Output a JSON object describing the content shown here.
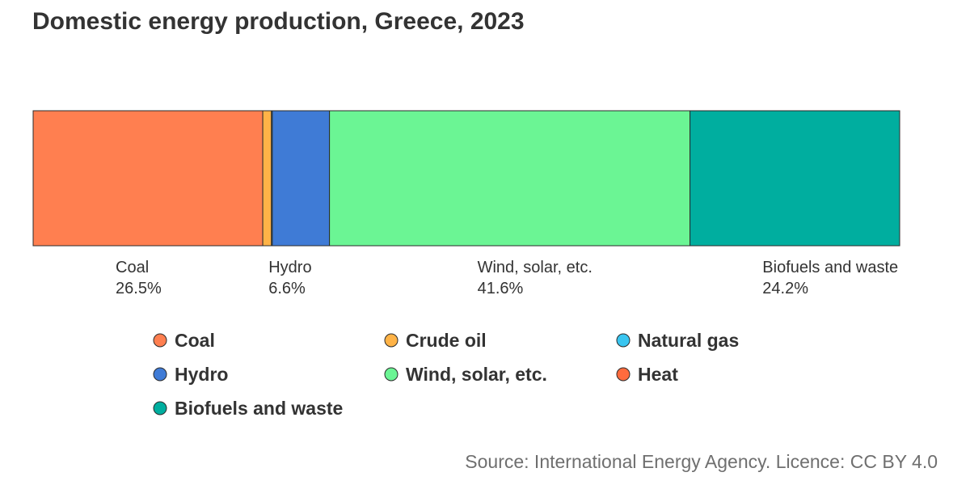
{
  "chart_data": {
    "type": "bar",
    "orientation": "horizontal-stacked-100",
    "title": "Domestic energy production, Greece, 2023",
    "source": "Source: International Energy Agency. Licence: CC BY 4.0",
    "unit": "%",
    "total": 100,
    "series": [
      {
        "name": "Coal",
        "value": 26.5,
        "color": "#ff7f50",
        "label": "Coal",
        "value_label": "26.5%"
      },
      {
        "name": "Crude oil",
        "value": 1.0,
        "color": "#ffb347",
        "label": "",
        "value_label": ""
      },
      {
        "name": "Natural gas",
        "value": 0.1,
        "color": "#39c5f0",
        "label": "",
        "value_label": ""
      },
      {
        "name": "Hydro",
        "value": 6.6,
        "color": "#3f7bd6",
        "label": "Hydro",
        "value_label": "6.6%"
      },
      {
        "name": "Wind, solar, etc.",
        "value": 41.6,
        "color": "#6bf594",
        "label": "Wind, solar, etc.",
        "value_label": "41.6%"
      },
      {
        "name": "Heat",
        "value": 0.0,
        "color": "#ff6b3d",
        "label": "",
        "value_label": ""
      },
      {
        "name": "Biofuels and waste",
        "value": 24.2,
        "color": "#00ae9f",
        "label": "Biofuels and waste",
        "value_label": "24.2%"
      }
    ],
    "legend": [
      {
        "name": "Coal",
        "color": "#ff7f50"
      },
      {
        "name": "Crude oil",
        "color": "#ffb347"
      },
      {
        "name": "Natural gas",
        "color": "#39c5f0"
      },
      {
        "name": "Hydro",
        "color": "#3f7bd6"
      },
      {
        "name": "Wind, solar, etc.",
        "color": "#6bf594"
      },
      {
        "name": "Heat",
        "color": "#ff6b3d"
      },
      {
        "name": "Biofuels and waste",
        "color": "#00ae9f"
      }
    ],
    "legend_placement": "bottom"
  }
}
